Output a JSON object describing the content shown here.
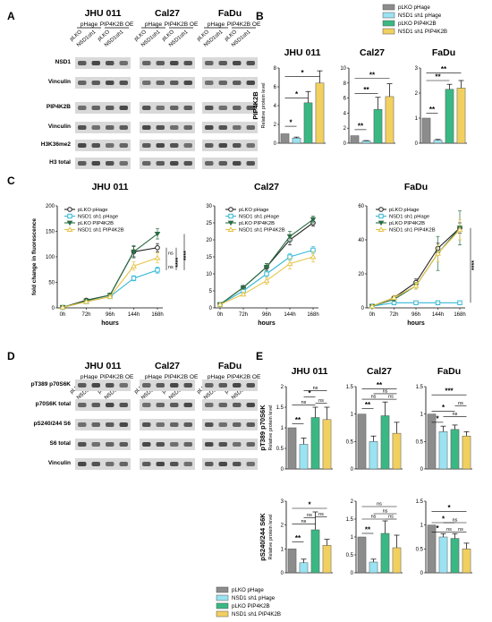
{
  "figure": {
    "panel_letters": [
      "A",
      "B",
      "C",
      "D",
      "E"
    ],
    "cell_lines": [
      "JHU 011",
      "Cal27",
      "FaDu"
    ]
  },
  "panel_a": {
    "group_labels": [
      "pHage",
      "PIP4K2B OE"
    ],
    "lane_labels": [
      "pLKO",
      "NSD1sh1",
      "pLKO",
      "NSD1sh1"
    ],
    "blots": [
      "NSD1",
      "Vinculin",
      "PIP4K2B",
      "Vinculin",
      "H3K36me2",
      "H3 total"
    ]
  },
  "panel_d": {
    "group_labels": [
      "pHage",
      "PIP4K2B OE"
    ],
    "lane_labels": [
      "pLKO",
      "NSD1sh1",
      "pLKO",
      "NSD1sh1"
    ],
    "blots": [
      "pT389 p70S6K",
      "p70S6K total",
      "pS240/244 S6",
      "S6 total",
      "Vinculin"
    ]
  },
  "colors": {
    "pLKO pHage": "#8c8c8c",
    "NSD1 sh1 pHage": "#9be3f2",
    "pLKO PIP4K2B": "#3ab884",
    "NSD1 sh1 PIP4K2B": "#f2d060",
    "line_pLKO_pHage": "#222222",
    "line_NSD1_pHage": "#36b8d8",
    "line_pLKO_PIP4K2B": "#2a6e44",
    "line_NSD1_PIP4K2B": "#e6c44a"
  },
  "legend_b": [
    "pLKO pHage",
    "NSD1 sh1 pHage",
    "pLKO PIP4K2B",
    "NSD1 sh1 PIP4K2B"
  ],
  "legend_e": [
    "pLKO pHage",
    "NSD1 sh1 pHage",
    "pLKO PIP4K2B",
    "NSD1 sh1 PIP4K2B"
  ],
  "chart_data": [
    {
      "panel": "B",
      "type": "bar",
      "title": "JHU 011",
      "ylabel": "PIP4K2B",
      "ylabel_sub": "Relative protein level",
      "categories": [
        "pLKO pHage",
        "NSD1 sh1 pHage",
        "pLKO PIP4K2B",
        "NSD1 sh1 PIP4K2B"
      ],
      "values": [
        1.0,
        0.55,
        4.3,
        6.4
      ],
      "errors": [
        0.0,
        0.1,
        1.2,
        1.3
      ],
      "ylim": [
        0,
        8
      ],
      "yticks": [
        0,
        2,
        4,
        6,
        8
      ],
      "significance": [
        {
          "from": 0,
          "to": 1,
          "label": "*",
          "y": 1.8
        },
        {
          "from": 0,
          "to": 2,
          "label": "*",
          "y": 4.8
        },
        {
          "from": 0,
          "to": 3,
          "label": "*",
          "y": 7.1
        }
      ]
    },
    {
      "panel": "B",
      "type": "bar",
      "title": "Cal27",
      "ylabel": "",
      "ylabel_sub": "",
      "categories": [
        "pLKO pHage",
        "NSD1 sh1 pHage",
        "pLKO PIP4K2B",
        "NSD1 sh1 PIP4K2B"
      ],
      "values": [
        1.0,
        0.3,
        4.5,
        6.2
      ],
      "errors": [
        0.0,
        0.05,
        1.6,
        1.7
      ],
      "ylim": [
        0,
        10
      ],
      "yticks": [
        0,
        2,
        4,
        6,
        8,
        10
      ],
      "significance": [
        {
          "from": 0,
          "to": 1,
          "label": "**",
          "y": 1.8
        },
        {
          "from": 0,
          "to": 2,
          "label": "**",
          "y": 6.6
        },
        {
          "from": 0,
          "to": 3,
          "label": "**",
          "y": 8.6
        }
      ]
    },
    {
      "panel": "B",
      "type": "bar",
      "title": "FaDu",
      "ylabel": "",
      "ylabel_sub": "",
      "categories": [
        "pLKO pHage",
        "NSD1 sh1 pHage",
        "pLKO PIP4K2B",
        "NSD1 sh1 PIP4K2B"
      ],
      "values": [
        1.0,
        0.12,
        2.15,
        2.2
      ],
      "errors": [
        0.0,
        0.03,
        0.2,
        0.3
      ],
      "ylim": [
        0,
        3
      ],
      "yticks": [
        0,
        1,
        2,
        3
      ],
      "significance": [
        {
          "from": 0,
          "to": 1,
          "label": "**",
          "y": 1.2
        },
        {
          "from": 0,
          "to": 2,
          "label": "**",
          "y": 2.5
        },
        {
          "from": 0,
          "to": 3,
          "label": "**",
          "y": 2.8
        }
      ]
    },
    {
      "panel": "C",
      "type": "line",
      "title": "JHU 011",
      "xlabel": "hours",
      "ylabel": "fold change in fluorescence",
      "categories": [
        "0h",
        "72h",
        "96h",
        "144h",
        "168h"
      ],
      "ylim": [
        0,
        200
      ],
      "yticks": [
        0,
        50,
        100,
        150,
        200
      ],
      "series": [
        {
          "name": "pLKO pHage",
          "values": [
            1,
            15,
            25,
            110,
            118
          ],
          "errors": [
            0,
            2,
            3,
            10,
            8
          ]
        },
        {
          "name": "NSD1 sh1 pHage",
          "values": [
            1,
            12,
            22,
            58,
            74
          ],
          "errors": [
            0,
            2,
            3,
            5,
            6
          ]
        },
        {
          "name": "pLKO PIP4K2B",
          "values": [
            1,
            14,
            25,
            110,
            145
          ],
          "errors": [
            0,
            2,
            3,
            12,
            10
          ]
        },
        {
          "name": "NSD1 sh1 PIP4K2B",
          "values": [
            1,
            12,
            22,
            82,
            98
          ],
          "errors": [
            0,
            2,
            3,
            8,
            10
          ]
        }
      ],
      "annotations": [
        "ns",
        "ns",
        "****",
        "****"
      ]
    },
    {
      "panel": "C",
      "type": "line",
      "title": "Cal27",
      "xlabel": "hours",
      "ylabel": "",
      "categories": [
        "0h",
        "72h",
        "96h",
        "144h",
        "168h"
      ],
      "ylim": [
        0,
        30
      ],
      "yticks": [
        0,
        5,
        10,
        15,
        20,
        25,
        30
      ],
      "series": [
        {
          "name": "pLKO pHage",
          "values": [
            1,
            6,
            12,
            20,
            25
          ],
          "errors": [
            0,
            0.5,
            1,
            1.5,
            1
          ]
        },
        {
          "name": "NSD1 sh1 pHage",
          "values": [
            1,
            5,
            10,
            15,
            17
          ],
          "errors": [
            0,
            0.5,
            1,
            1,
            1
          ]
        },
        {
          "name": "pLKO PIP4K2B",
          "values": [
            1,
            6,
            12,
            21,
            26
          ],
          "errors": [
            0,
            0.5,
            1,
            1.5,
            1
          ]
        },
        {
          "name": "NSD1 sh1 PIP4K2B",
          "values": [
            1,
            4,
            8,
            13,
            15
          ],
          "errors": [
            0,
            0.5,
            1,
            1.5,
            1.5
          ]
        }
      ],
      "annotations": []
    },
    {
      "panel": "C",
      "type": "line",
      "title": "FaDu",
      "xlabel": "hours",
      "ylabel": "",
      "categories": [
        "0h",
        "72h",
        "96h",
        "144h",
        "168h"
      ],
      "ylim": [
        0,
        60
      ],
      "yticks": [
        0,
        20,
        40,
        60
      ],
      "series": [
        {
          "name": "pLKO pHage",
          "values": [
            1,
            6,
            15,
            35,
            47
          ],
          "errors": [
            0,
            1,
            2,
            3,
            3
          ]
        },
        {
          "name": "NSD1 sh1 pHage",
          "values": [
            1,
            3,
            3,
            3,
            3
          ],
          "errors": [
            0,
            0.5,
            0.5,
            0.5,
            0.5
          ]
        },
        {
          "name": "pLKO PIP4K2B",
          "values": [
            1,
            5,
            13,
            32,
            47
          ],
          "errors": [
            0,
            1,
            2,
            10,
            10
          ]
        },
        {
          "name": "NSD1 sh1 PIP4K2B",
          "values": [
            1,
            6,
            13,
            32,
            46
          ],
          "errors": [
            0,
            1,
            2,
            5,
            6
          ]
        }
      ],
      "annotations": [
        "****"
      ]
    },
    {
      "panel": "E",
      "type": "bar",
      "title": "JHU 011",
      "ylabel": "pT389 p70S6K",
      "ylabel_sub": "Relative protein level",
      "categories": [
        "pLKO pHage",
        "NSD1 sh1 pHage",
        "pLKO PIP4K2B",
        "NSD1 sh1 PIP4K2B"
      ],
      "values": [
        1.0,
        0.6,
        1.25,
        1.2
      ],
      "errors": [
        0.0,
        0.15,
        0.25,
        0.3
      ],
      "ylim": [
        0,
        2.0
      ],
      "yticks": [
        0.0,
        0.5,
        1.0,
        1.5,
        2.0
      ],
      "significance": [
        {
          "from": 0,
          "to": 1,
          "label": "**",
          "y": 1.1
        },
        {
          "from": 0,
          "to": 2,
          "label": "ns",
          "y": 1.55
        },
        {
          "from": 1,
          "to": 2,
          "label": "*",
          "y": 1.75
        },
        {
          "from": 2,
          "to": 3,
          "label": "ns",
          "y": 1.6
        },
        {
          "from": 1,
          "to": 3,
          "label": "ns",
          "y": 1.9
        }
      ]
    },
    {
      "panel": "E",
      "type": "bar",
      "title": "Cal27",
      "ylabel": "",
      "ylabel_sub": "",
      "categories": [
        "pLKO pHage",
        "NSD1 sh1 pHage",
        "pLKO PIP4K2B",
        "NSD1 sh1 PIP4K2B"
      ],
      "values": [
        1.0,
        0.5,
        0.97,
        0.65
      ],
      "errors": [
        0.0,
        0.1,
        0.25,
        0.2
      ],
      "ylim": [
        0,
        1.5
      ],
      "yticks": [
        0.0,
        0.5,
        1.0,
        1.5
      ],
      "significance": [
        {
          "from": 0,
          "to": 1,
          "label": "**",
          "y": 1.1
        },
        {
          "from": 0,
          "to": 2,
          "label": "ns",
          "y": 1.27
        },
        {
          "from": 2,
          "to": 3,
          "label": "ns",
          "y": 1.27
        },
        {
          "from": 1,
          "to": 3,
          "label": "ns",
          "y": 1.37
        },
        {
          "from": 0,
          "to": 3,
          "label": "**",
          "y": 1.46
        }
      ]
    },
    {
      "panel": "E",
      "type": "bar",
      "title": "FaDu",
      "ylabel": "",
      "ylabel_sub": "",
      "categories": [
        "pLKO pHage",
        "NSD1 sh1 pHage",
        "pLKO PIP4K2B",
        "NSD1 sh1 PIP4K2B"
      ],
      "values": [
        1.0,
        0.68,
        0.72,
        0.6
      ],
      "errors": [
        0.0,
        0.1,
        0.08,
        0.08
      ],
      "ylim": [
        0,
        1.5
      ],
      "yticks": [
        0.0,
        0.5,
        1.0,
        1.5
      ],
      "significance": [
        {
          "from": 0,
          "to": 1,
          "label": "*",
          "y": 0.85
        },
        {
          "from": 0,
          "to": 2,
          "label": "*",
          "y": 1.05
        },
        {
          "from": 1,
          "to": 3,
          "label": "ns",
          "y": 0.95
        },
        {
          "from": 2,
          "to": 3,
          "label": "ns",
          "y": 1.15
        },
        {
          "from": 0,
          "to": 3,
          "label": "***",
          "y": 1.35
        }
      ]
    },
    {
      "panel": "E",
      "type": "bar",
      "title": "",
      "ylabel": "pS240/244 S6K",
      "ylabel_sub": "Relative protein level",
      "categories": [
        "pLKO pHage",
        "NSD1 sh1 pHage",
        "pLKO PIP4K2B",
        "NSD1 sh1 PIP4K2B"
      ],
      "values": [
        1.0,
        0.42,
        1.8,
        1.15
      ],
      "errors": [
        0.0,
        0.15,
        0.75,
        0.25
      ],
      "ylim": [
        0,
        3
      ],
      "yticks": [
        0,
        1,
        2,
        3
      ],
      "significance": [
        {
          "from": 0,
          "to": 1,
          "label": "**",
          "y": 1.3
        },
        {
          "from": 0,
          "to": 2,
          "label": "ns",
          "y": 2.05
        },
        {
          "from": 1,
          "to": 2,
          "label": "ns",
          "y": 2.3
        },
        {
          "from": 2,
          "to": 3,
          "label": "ns",
          "y": 2.35
        },
        {
          "from": 0,
          "to": 3,
          "label": "*",
          "y": 2.7
        }
      ]
    },
    {
      "panel": "E",
      "type": "bar",
      "title": "",
      "ylabel": "",
      "ylabel_sub": "",
      "categories": [
        "pLKO pHage",
        "NSD1 sh1 pHage",
        "pLKO PIP4K2B",
        "NSD1 sh1 PIP4K2B"
      ],
      "values": [
        1.0,
        0.3,
        1.1,
        0.7
      ],
      "errors": [
        0.0,
        0.08,
        0.35,
        0.35
      ],
      "ylim": [
        0,
        2.0
      ],
      "yticks": [
        0.0,
        0.5,
        1.0,
        1.5,
        2.0
      ],
      "significance": [
        {
          "from": 0,
          "to": 1,
          "label": "**",
          "y": 1.1
        },
        {
          "from": 0,
          "to": 2,
          "label": "ns",
          "y": 1.5
        },
        {
          "from": 2,
          "to": 3,
          "label": "ns",
          "y": 1.5
        },
        {
          "from": 1,
          "to": 3,
          "label": "ns",
          "y": 1.65
        },
        {
          "from": 0,
          "to": 3,
          "label": "ns",
          "y": 1.85
        }
      ]
    },
    {
      "panel": "E",
      "type": "bar",
      "title": "",
      "ylabel": "",
      "ylabel_sub": "",
      "categories": [
        "pLKO pHage",
        "NSD1 sh1 pHage",
        "pLKO PIP4K2B",
        "NSD1 sh1 PIP4K2B"
      ],
      "values": [
        1.0,
        0.75,
        0.72,
        0.5
      ],
      "errors": [
        0.0,
        0.07,
        0.1,
        0.12
      ],
      "ylim": [
        0,
        1.5
      ],
      "yticks": [
        0.0,
        0.5,
        1.0,
        1.5
      ],
      "significance": [
        {
          "from": 0,
          "to": 1,
          "label": "*",
          "y": 0.85
        },
        {
          "from": 1,
          "to": 2,
          "label": "ns",
          "y": 0.85
        },
        {
          "from": 2,
          "to": 3,
          "label": "ns",
          "y": 0.85
        },
        {
          "from": 0,
          "to": 2,
          "label": "*",
          "y": 1.05
        },
        {
          "from": 1,
          "to": 3,
          "label": "ns",
          "y": 1.05
        },
        {
          "from": 0,
          "to": 3,
          "label": "*",
          "y": 1.28
        }
      ]
    }
  ]
}
